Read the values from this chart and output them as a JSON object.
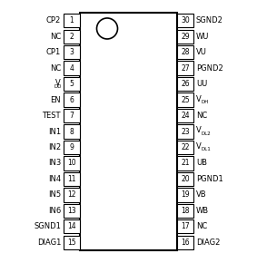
{
  "left_pins": [
    {
      "num": 1,
      "label": "CP2",
      "special": false
    },
    {
      "num": 2,
      "label": "NC",
      "special": false
    },
    {
      "num": 3,
      "label": "CP1",
      "special": false
    },
    {
      "num": 4,
      "label": "NC",
      "special": false
    },
    {
      "num": 5,
      "label": "VDD",
      "special": true,
      "base": "V",
      "sub": "DD"
    },
    {
      "num": 6,
      "label": "EN",
      "special": false
    },
    {
      "num": 7,
      "label": "TEST",
      "special": false
    },
    {
      "num": 8,
      "label": "IN1",
      "special": false
    },
    {
      "num": 9,
      "label": "IN2",
      "special": false
    },
    {
      "num": 10,
      "label": "IN3",
      "special": false
    },
    {
      "num": 11,
      "label": "IN4",
      "special": false
    },
    {
      "num": 12,
      "label": "IN5",
      "special": false
    },
    {
      "num": 13,
      "label": "IN6",
      "special": false
    },
    {
      "num": 14,
      "label": "SGND1",
      "special": false
    },
    {
      "num": 15,
      "label": "DIAG1",
      "special": false
    }
  ],
  "right_pins": [
    {
      "num": 30,
      "label": "SGND2",
      "special": false
    },
    {
      "num": 29,
      "label": "WU",
      "special": false
    },
    {
      "num": 28,
      "label": "VU",
      "special": false
    },
    {
      "num": 27,
      "label": "PGND2",
      "special": false
    },
    {
      "num": 26,
      "label": "UU",
      "special": false
    },
    {
      "num": 25,
      "label": "VDH",
      "special": true,
      "base": "V",
      "sub": "DH"
    },
    {
      "num": 24,
      "label": "NC",
      "special": false
    },
    {
      "num": 23,
      "label": "VDL2",
      "special": true,
      "base": "V",
      "sub": "DL2"
    },
    {
      "num": 22,
      "label": "VDL1",
      "special": true,
      "base": "V",
      "sub": "DL1"
    },
    {
      "num": 21,
      "label": "UB",
      "special": false
    },
    {
      "num": 20,
      "label": "PGND1",
      "special": false
    },
    {
      "num": 19,
      "label": "VB",
      "special": false
    },
    {
      "num": 18,
      "label": "WB",
      "special": false
    },
    {
      "num": 17,
      "label": "NC",
      "special": false
    },
    {
      "num": 16,
      "label": "DIAG2",
      "special": false
    }
  ],
  "ic_color": "#ffffff",
  "line_color": "#000000",
  "bg_color": "#ffffff",
  "label_fontsize": 6.0,
  "num_fontsize": 5.5,
  "sub_fontsize": 4.0
}
